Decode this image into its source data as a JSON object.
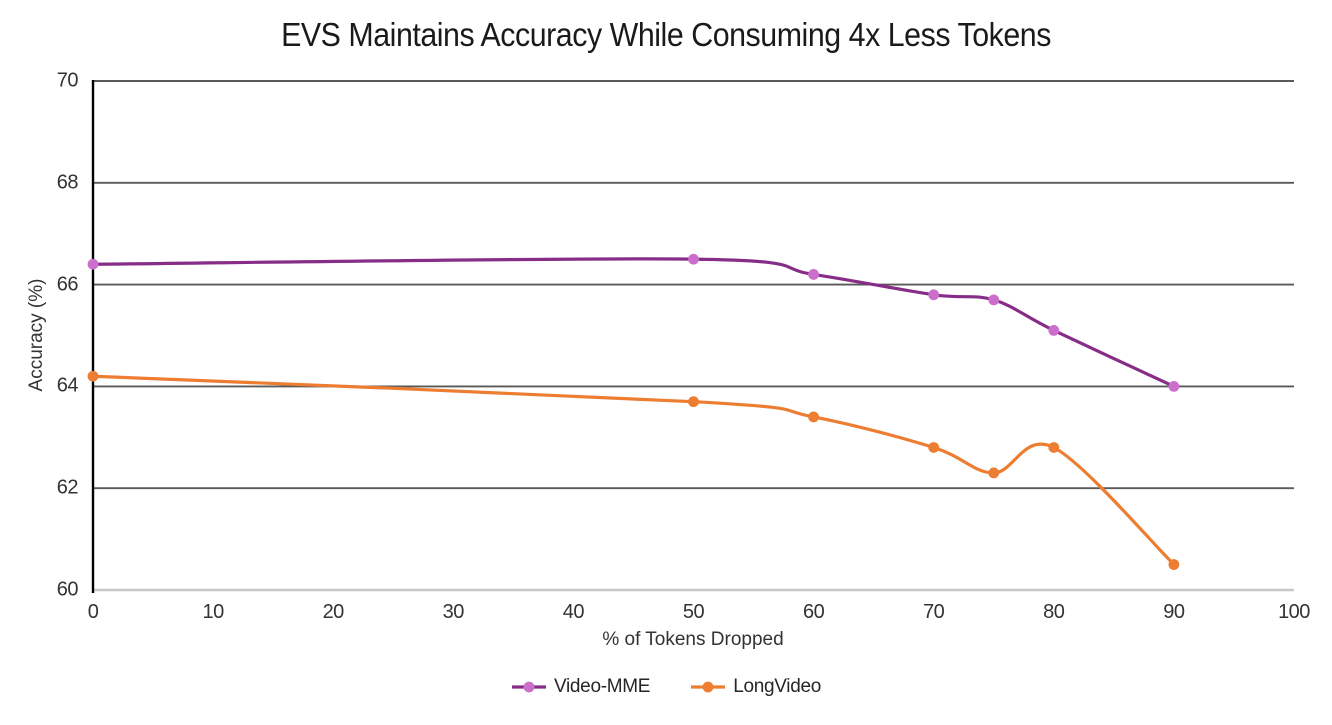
{
  "chart_data": {
    "type": "line",
    "title": "EVS Maintains Accuracy While Consuming 4x Less Tokens",
    "xlabel": "% of Tokens Dropped",
    "ylabel": "Accuracy (%)",
    "xlim": [
      0,
      100
    ],
    "ylim": [
      60,
      70
    ],
    "x_ticks": [
      0,
      10,
      20,
      30,
      40,
      50,
      60,
      70,
      80,
      90,
      100
    ],
    "y_ticks": [
      60,
      62,
      64,
      66,
      68,
      70
    ],
    "grid": "horizontal-only",
    "smoothed_lines": true,
    "legend_position": "bottom-center",
    "series": [
      {
        "name": "Video-MME",
        "x": [
          0,
          50,
          60,
          70,
          75,
          80,
          90
        ],
        "values": [
          66.4,
          66.5,
          66.2,
          65.8,
          65.7,
          65.1,
          64.0
        ],
        "line_color": "#872D87",
        "marker_color": "#CC6FCC"
      },
      {
        "name": "LongVideo",
        "x": [
          0,
          50,
          60,
          70,
          75,
          80,
          90
        ],
        "values": [
          64.2,
          63.7,
          63.4,
          62.8,
          62.3,
          62.8,
          60.5
        ],
        "line_color": "#ED7D31",
        "marker_color": "#ED7D31"
      }
    ],
    "colors": {
      "background": "#ffffff",
      "gridline": "#595959",
      "x_axis_line": "#C8C8C8",
      "y_axis_line": "#000000",
      "text": "#333333",
      "title_text": "#1a1a1a"
    }
  }
}
